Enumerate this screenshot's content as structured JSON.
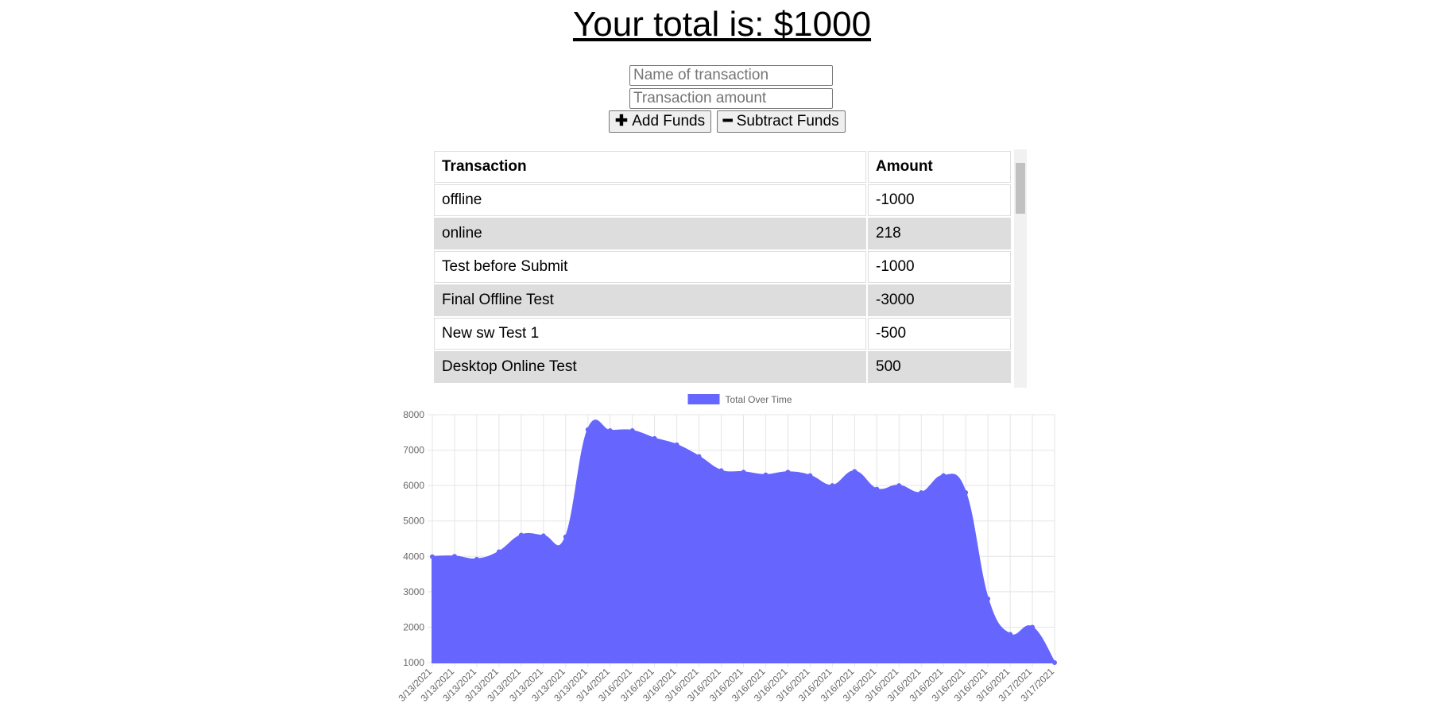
{
  "header": {
    "title": "Your total is: $1000"
  },
  "form": {
    "name_placeholder": "Name of transaction",
    "amount_placeholder": "Transaction amount",
    "add_button": "Add Funds",
    "subtract_button": "Subtract Funds"
  },
  "table": {
    "columns": [
      "Transaction",
      "Amount"
    ],
    "rows": [
      [
        "offline",
        "-1000"
      ],
      [
        "online",
        "218"
      ],
      [
        "Test before Submit",
        "-1000"
      ],
      [
        "Final Offline Test",
        "-3000"
      ],
      [
        "New sw Test 1",
        "-500"
      ],
      [
        "Desktop Online Test",
        "500"
      ]
    ]
  },
  "chart_data": {
    "type": "area",
    "categories": [
      "3/13/2021",
      "3/13/2021",
      "3/13/2021",
      "3/13/2021",
      "3/13/2021",
      "3/13/2021",
      "3/13/2021",
      "3/13/2021",
      "3/14/2021",
      "3/16/2021",
      "3/16/2021",
      "3/16/2021",
      "3/16/2021",
      "3/16/2021",
      "3/16/2021",
      "3/16/2021",
      "3/16/2021",
      "3/16/2021",
      "3/16/2021",
      "3/16/2021",
      "3/16/2021",
      "3/16/2021",
      "3/16/2021",
      "3/16/2021",
      "3/16/2021",
      "3/16/2021",
      "3/16/2021",
      "3/17/2021",
      "3/17/2021"
    ],
    "series": [
      {
        "name": "Total Over Time",
        "color": "#6666ff",
        "values": [
          3990,
          4000,
          3920,
          4130,
          4600,
          4580,
          4550,
          7580,
          7550,
          7550,
          7330,
          7150,
          6820,
          6420,
          6380,
          6300,
          6380,
          6280,
          6000,
          6400,
          5900,
          6000,
          5800,
          6280,
          5800,
          2800,
          1800,
          2000,
          1000
        ]
      }
    ],
    "ylim": [
      1000,
      8000
    ],
    "yticks": [
      1000,
      2000,
      3000,
      4000,
      5000,
      6000,
      7000,
      8000
    ],
    "grid": true,
    "legend": "top"
  }
}
